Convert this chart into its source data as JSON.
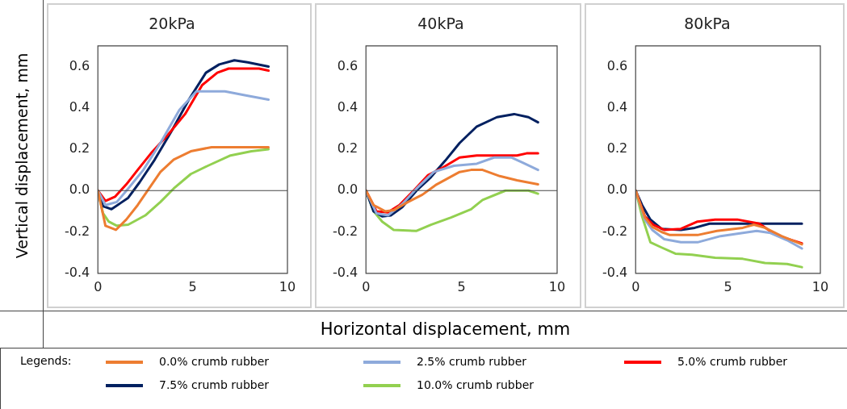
{
  "chart_data": [
    {
      "type": "line",
      "title": "20kPa",
      "ref_lines": [
        {
          "axis": "y",
          "value": 0,
          "color": "#444444"
        }
      ],
      "ylabel": "Vertical displacement, mm",
      "xlabel": "Horizontal displacement, mm",
      "legend_title": "Legends:",
      "legend": "bottom",
      "grid": false,
      "marker": "none",
      "line_style": "solid",
      "xlim": [
        0,
        10
      ],
      "xticks": [
        0,
        5,
        10
      ],
      "ylim": [
        -0.4,
        0.7
      ],
      "yticks": [
        {
          "value": -0.4,
          "label": "-0.4"
        },
        {
          "value": -0.2,
          "label": "-0.2"
        },
        {
          "value": 0,
          "label": "0.0"
        },
        {
          "value": 0.2,
          "label": "0.2"
        },
        {
          "value": 0.4,
          "label": "0.4"
        },
        {
          "value": 0.6,
          "label": "0.6"
        }
      ],
      "series": [
        {
          "name": "0.0% crumb rubber",
          "color": "#ed7d31",
          "x": [
            0,
            0.4,
            0.95,
            1.5,
            2.1,
            2.7,
            3.3,
            4.0,
            4.9,
            6.0,
            7.0,
            9.0
          ],
          "values": [
            0,
            -0.17,
            -0.19,
            -0.14,
            -0.07,
            0.01,
            0.09,
            0.15,
            0.19,
            0.21,
            0.21,
            0.21
          ]
        },
        {
          "name": "2.5% crumb rubber",
          "color": "#8eaadb",
          "x": [
            0,
            0.4,
            1.0,
            1.6,
            2.4,
            3.3,
            4.3,
            5.2,
            6.7,
            7.8,
            9.0
          ],
          "values": [
            0,
            -0.07,
            -0.055,
            0.01,
            0.1,
            0.23,
            0.39,
            0.48,
            0.48,
            0.46,
            0.44
          ]
        },
        {
          "name": "5.0% crumb rubber",
          "color": "#ff0000",
          "x": [
            0,
            0.4,
            0.9,
            1.5,
            2.1,
            2.8,
            3.7,
            4.6,
            5.5,
            6.3,
            6.9,
            8.5,
            9.0
          ],
          "values": [
            0,
            -0.05,
            -0.03,
            0.03,
            0.1,
            0.18,
            0.27,
            0.37,
            0.51,
            0.57,
            0.59,
            0.59,
            0.58
          ]
        },
        {
          "name": "7.5% crumb rubber",
          "color": "#002060",
          "x": [
            0,
            0.27,
            0.72,
            1.2,
            1.6,
            2.2,
            3.0,
            3.9,
            4.8,
            5.7,
            6.4,
            7.2,
            7.9,
            9.0
          ],
          "values": [
            0,
            -0.075,
            -0.09,
            -0.06,
            -0.035,
            0.04,
            0.15,
            0.29,
            0.44,
            0.57,
            0.61,
            0.63,
            0.62,
            0.6
          ]
        },
        {
          "name": "10.0% crumb rubber",
          "color": "#92d050",
          "x": [
            0,
            0.27,
            0.57,
            1.0,
            1.6,
            2.5,
            3.3,
            4.0,
            4.9,
            5.8,
            7.0,
            8.1,
            9.0
          ],
          "values": [
            0,
            -0.11,
            -0.15,
            -0.17,
            -0.165,
            -0.12,
            -0.055,
            0.01,
            0.08,
            0.12,
            0.17,
            0.19,
            0.2
          ]
        }
      ]
    },
    {
      "type": "line",
      "title": "40kPa",
      "ref_lines": [
        {
          "axis": "y",
          "value": 0,
          "color": "#444444"
        }
      ],
      "grid": false,
      "marker": "none",
      "line_style": "solid",
      "xlim": [
        0,
        10
      ],
      "xticks": [
        0,
        5,
        10
      ],
      "ylim": [
        -0.4,
        0.7
      ],
      "yticks": [
        {
          "value": -0.4,
          "label": "-0.4"
        },
        {
          "value": -0.2,
          "label": "-0.2"
        },
        {
          "value": 0,
          "label": "0.0"
        },
        {
          "value": 0.2,
          "label": "0.2"
        },
        {
          "value": 0.4,
          "label": "0.4"
        },
        {
          "value": 0.6,
          "label": "0.6"
        }
      ],
      "series": [
        {
          "color": "#ed7d31",
          "x": [
            0,
            0.4,
            1.0,
            1.45,
            2.2,
            2.95,
            3.7,
            4.9,
            5.5,
            6.1,
            7.0,
            7.9,
            9.0
          ],
          "values": [
            0,
            -0.07,
            -0.1,
            -0.095,
            -0.055,
            -0.02,
            0.03,
            0.09,
            0.1,
            0.1,
            0.07,
            0.05,
            0.03
          ]
        },
        {
          "color": "#8eaadb",
          "x": [
            0,
            0.55,
            1.15,
            1.9,
            2.65,
            3.55,
            4.6,
            5.8,
            6.7,
            7.6,
            8.2,
            9.0
          ],
          "values": [
            0,
            -0.11,
            -0.12,
            -0.065,
            0.01,
            0.09,
            0.12,
            0.13,
            0.16,
            0.16,
            0.135,
            0.1
          ]
        },
        {
          "color": "#ff0000",
          "x": [
            0,
            0.55,
            1.15,
            1.75,
            2.5,
            3.25,
            4.0,
            4.9,
            5.8,
            7.9,
            8.4,
            9.0
          ],
          "values": [
            0,
            -0.1,
            -0.105,
            -0.07,
            0,
            0.075,
            0.11,
            0.16,
            0.17,
            0.17,
            0.18,
            0.18
          ]
        },
        {
          "color": "#002060",
          "x": [
            0,
            0.4,
            0.85,
            1.3,
            1.9,
            2.65,
            3.4,
            4.15,
            4.9,
            5.8,
            6.85,
            7.75,
            8.5,
            9.0
          ],
          "values": [
            0,
            -0.1,
            -0.125,
            -0.12,
            -0.08,
            0,
            0.065,
            0.145,
            0.23,
            0.31,
            0.355,
            0.37,
            0.355,
            0.33
          ]
        },
        {
          "color": "#92d050",
          "x": [
            0,
            0.4,
            0.85,
            1.45,
            2.65,
            3.4,
            4.45,
            5.5,
            6.1,
            7.3,
            8.5,
            9.0
          ],
          "values": [
            0,
            -0.1,
            -0.15,
            -0.19,
            -0.195,
            -0.165,
            -0.13,
            -0.09,
            -0.045,
            0,
            0,
            -0.015
          ]
        }
      ]
    },
    {
      "type": "line",
      "title": "80kPa",
      "ref_lines": [
        {
          "axis": "y",
          "value": 0,
          "color": "#444444"
        }
      ],
      "grid": false,
      "marker": "none",
      "line_style": "solid",
      "xlim": [
        0,
        10
      ],
      "xticks": [
        0,
        5,
        10
      ],
      "ylim": [
        -0.4,
        0.7
      ],
      "yticks": [
        {
          "value": -0.4,
          "label": "-0.4"
        },
        {
          "value": -0.2,
          "label": "-0.2"
        },
        {
          "value": 0,
          "label": "0.0"
        },
        {
          "value": 0.2,
          "label": "0.2"
        },
        {
          "value": 0.4,
          "label": "0.4"
        },
        {
          "value": 0.6,
          "label": "0.6"
        }
      ],
      "series": [
        {
          "color": "#ed7d31",
          "x": [
            0,
            0.5,
            0.9,
            1.4,
            1.85,
            3.35,
            4.4,
            5.8,
            6.4,
            7.0,
            7.9,
            9.0
          ],
          "values": [
            0,
            -0.13,
            -0.175,
            -0.2,
            -0.215,
            -0.215,
            -0.195,
            -0.18,
            -0.165,
            -0.18,
            -0.22,
            -0.26
          ]
        },
        {
          "color": "#8eaadb",
          "x": [
            0,
            0.5,
            0.9,
            1.55,
            2.45,
            3.35,
            4.6,
            5.8,
            6.55,
            7.3,
            8.2,
            9.0
          ],
          "values": [
            0,
            -0.14,
            -0.19,
            -0.235,
            -0.25,
            -0.25,
            -0.22,
            -0.205,
            -0.195,
            -0.205,
            -0.24,
            -0.28
          ]
        },
        {
          "color": "#ff0000",
          "x": [
            0,
            0.5,
            0.95,
            1.55,
            2.45,
            3.35,
            4.3,
            5.5,
            6.7,
            7.6,
            9.0
          ],
          "values": [
            0,
            -0.125,
            -0.165,
            -0.19,
            -0.185,
            -0.15,
            -0.14,
            -0.14,
            -0.16,
            -0.215,
            -0.255
          ]
        },
        {
          "color": "#002060",
          "x": [
            0,
            0.35,
            0.8,
            1.4,
            2.45,
            3.2,
            4.0,
            9.0
          ],
          "values": [
            0,
            -0.07,
            -0.14,
            -0.185,
            -0.19,
            -0.18,
            -0.16,
            -0.16
          ]
        },
        {
          "color": "#92d050",
          "x": [
            0,
            0.35,
            0.8,
            1.4,
            2.15,
            3.05,
            4.3,
            5.8,
            7.0,
            8.2,
            9.0
          ],
          "values": [
            0,
            -0.125,
            -0.25,
            -0.275,
            -0.305,
            -0.31,
            -0.325,
            -0.33,
            -0.35,
            -0.355,
            -0.37
          ]
        }
      ]
    }
  ]
}
